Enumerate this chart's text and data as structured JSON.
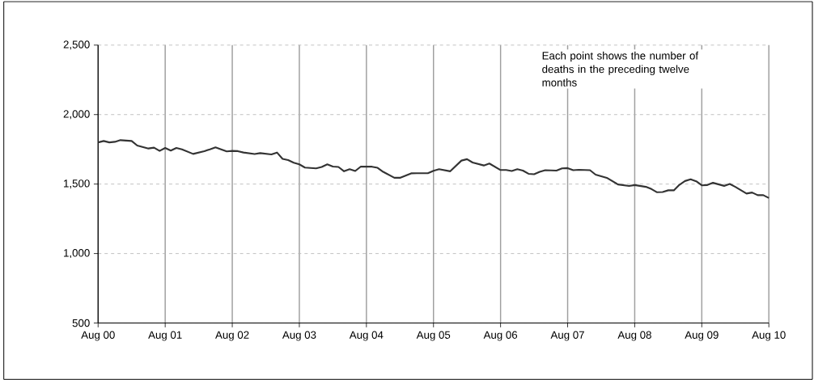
{
  "chart_data": {
    "type": "line",
    "x": [
      "2000-08",
      "2000-09",
      "2000-10",
      "2000-11",
      "2000-12",
      "2001-02",
      "2001-03",
      "2001-05",
      "2001-06",
      "2001-07",
      "2001-08",
      "2001-09",
      "2001-10",
      "2001-11",
      "2002-01",
      "2002-03",
      "2002-04",
      "2002-05",
      "2002-07",
      "2002-08",
      "2002-09",
      "2002-10",
      "2002-12",
      "2003-01",
      "2003-03",
      "2003-04",
      "2003-05",
      "2003-06",
      "2003-07",
      "2003-08",
      "2003-09",
      "2003-11",
      "2003-12",
      "2004-01",
      "2004-02",
      "2004-03",
      "2004-04",
      "2004-05",
      "2004-06",
      "2004-07",
      "2004-09",
      "2004-10",
      "2004-11",
      "2005-01",
      "2005-02",
      "2005-04",
      "2005-05",
      "2005-07",
      "2005-08",
      "2005-09",
      "2005-11",
      "2006-01",
      "2006-02",
      "2006-03",
      "2006-05",
      "2006-06",
      "2006-08",
      "2006-09",
      "2006-10",
      "2006-11",
      "2006-12",
      "2007-01",
      "2007-02",
      "2007-03",
      "2007-04",
      "2007-06",
      "2007-07",
      "2007-08",
      "2007-09",
      "2007-10",
      "2007-12",
      "2008-01",
      "2008-03",
      "2008-05",
      "2008-07",
      "2008-08",
      "2008-10",
      "2008-11",
      "2008-12",
      "2009-01",
      "2009-02",
      "2009-03",
      "2009-04",
      "2009-05",
      "2009-06",
      "2009-07",
      "2009-08",
      "2009-09",
      "2009-10",
      "2009-12",
      "2010-01",
      "2010-02",
      "2010-04",
      "2010-05",
      "2010-06",
      "2010-07",
      "2010-08"
    ],
    "series": [
      {
        "color": "#333333",
        "values": [
          1800,
          1810,
          1800,
          1804,
          1816,
          1810,
          1777,
          1756,
          1762,
          1739,
          1760,
          1741,
          1760,
          1750,
          1717,
          1737,
          1750,
          1764,
          1735,
          1739,
          1737,
          1727,
          1716,
          1723,
          1713,
          1727,
          1681,
          1673,
          1654,
          1642,
          1619,
          1613,
          1623,
          1642,
          1626,
          1623,
          1592,
          1607,
          1594,
          1626,
          1625,
          1617,
          1588,
          1545,
          1545,
          1577,
          1578,
          1578,
          1596,
          1607,
          1592,
          1669,
          1679,
          1655,
          1634,
          1648,
          1601,
          1601,
          1594,
          1607,
          1597,
          1574,
          1571,
          1588,
          1600,
          1597,
          1613,
          1615,
          1600,
          1603,
          1600,
          1568,
          1545,
          1497,
          1486,
          1493,
          1480,
          1464,
          1441,
          1443,
          1455,
          1455,
          1495,
          1522,
          1534,
          1520,
          1491,
          1493,
          1509,
          1487,
          1501,
          1480,
          1432,
          1439,
          1420,
          1420,
          1400
        ]
      }
    ],
    "xlim": [
      "2000-08",
      "2010-08"
    ],
    "xticks": [
      {
        "value": "2000-08",
        "label": "Aug 00"
      },
      {
        "value": "2001-08",
        "label": "Aug 01"
      },
      {
        "value": "2002-08",
        "label": "Aug 02"
      },
      {
        "value": "2003-08",
        "label": "Aug 03"
      },
      {
        "value": "2004-08",
        "label": "Aug 04"
      },
      {
        "value": "2005-08",
        "label": "Aug 05"
      },
      {
        "value": "2006-08",
        "label": "Aug 06"
      },
      {
        "value": "2007-08",
        "label": "Aug 07"
      },
      {
        "value": "2008-08",
        "label": "Aug 08"
      },
      {
        "value": "2009-08",
        "label": "Aug 09"
      },
      {
        "value": "2010-08",
        "label": "Aug 10"
      }
    ],
    "ylim": [
      500,
      2500
    ],
    "yticks": [
      500,
      {
        "value": 1000,
        "label": "1,000"
      },
      {
        "value": 1500,
        "label": "1,500"
      },
      {
        "value": 2000,
        "label": "2,000"
      },
      {
        "value": 2500,
        "label": "2,500"
      }
    ],
    "grid": true,
    "annotations": [
      "Each point shows the number of deaths in the preceding twelve months"
    ]
  }
}
